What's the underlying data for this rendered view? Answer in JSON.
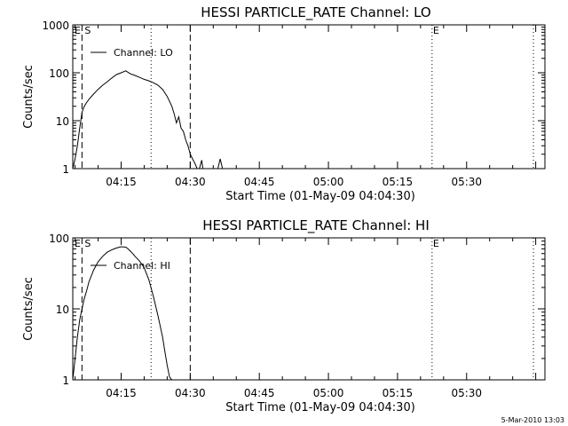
{
  "chart_data": [
    {
      "type": "line",
      "title": "HESSI PARTICLE_RATE Channel: LO",
      "xlabel": "Start Time (01-May-09 04:04:30)",
      "ylabel": "Counts/sec",
      "y_scale": "log",
      "ylim": [
        1,
        1000
      ],
      "xlim": [
        "04:04:30",
        "05:47:00"
      ],
      "x_ticks": [
        "04:15",
        "04:30",
        "04:45",
        "05:00",
        "05:15",
        "05:30"
      ],
      "y_ticks": [
        "1",
        "10",
        "100",
        "1000"
      ],
      "legend": {
        "position": "top-left",
        "entries": [
          "Channel: LO"
        ]
      },
      "markers": {
        "start_label": "S",
        "end_label": "E",
        "dashed_at": [
          "04:06:30",
          "04:30:00"
        ],
        "dotted_at": [
          "04:21:30",
          "05:22:30",
          "05:44:30"
        ]
      },
      "series": [
        {
          "name": "Channel: LO",
          "x": [
            "04:04:30",
            "04:05:00",
            "04:05:30",
            "04:06:00",
            "04:06:30",
            "04:07:00",
            "04:07:30",
            "04:08:00",
            "04:09:00",
            "04:10:00",
            "04:11:00",
            "04:12:00",
            "04:13:00",
            "04:14:00",
            "04:15:00",
            "04:16:00",
            "04:17:00",
            "04:18:00",
            "04:19:00",
            "04:20:00",
            "04:21:00",
            "04:22:00",
            "04:23:00",
            "04:24:00",
            "04:25:00",
            "04:26:00",
            "04:26:30",
            "04:27:00",
            "04:27:30",
            "04:28:00",
            "04:28:30",
            "04:29:00",
            "04:29:30",
            "04:30:00",
            "04:30:30",
            "04:31:00",
            "04:31:30",
            "04:32:00",
            "04:32:30",
            "04:32:45",
            "04:33:00",
            "04:33:30",
            "04:34:00",
            "04:35:00",
            "04:36:00",
            "04:36:30",
            "04:37:00",
            "04:37:30"
          ],
          "y": [
            1,
            1.6,
            3,
            7,
            15,
            20,
            24,
            28,
            36,
            45,
            55,
            65,
            78,
            92,
            100,
            110,
            95,
            88,
            80,
            73,
            68,
            62,
            55,
            45,
            32,
            20,
            14,
            9,
            12,
            7,
            6,
            4,
            3,
            2,
            1.6,
            1.3,
            1,
            1,
            1.5,
            1,
            1,
            1,
            1,
            1,
            1,
            1.6,
            1,
            1
          ]
        }
      ]
    },
    {
      "type": "line",
      "title": "HESSI PARTICLE_RATE Channel: HI",
      "xlabel": "Start Time (01-May-09 04:04:30)",
      "ylabel": "Counts/sec",
      "y_scale": "log",
      "ylim": [
        1,
        100
      ],
      "xlim": [
        "04:04:30",
        "05:47:00"
      ],
      "x_ticks": [
        "04:15",
        "04:30",
        "04:45",
        "05:00",
        "05:15",
        "05:30"
      ],
      "y_ticks": [
        "1",
        "10",
        "100"
      ],
      "legend": {
        "position": "top-left",
        "entries": [
          "Channel: HI"
        ]
      },
      "markers": {
        "start_label": "S",
        "end_label": "E",
        "dashed_at": [
          "04:06:30",
          "04:30:00"
        ],
        "dotted_at": [
          "04:21:30",
          "05:22:30",
          "05:44:30"
        ]
      },
      "series": [
        {
          "name": "Channel: HI",
          "x": [
            "04:04:30",
            "04:05:00",
            "04:05:30",
            "04:06:00",
            "04:06:30",
            "04:07:00",
            "04:07:30",
            "04:08:00",
            "04:09:00",
            "04:10:00",
            "04:11:00",
            "04:12:00",
            "04:13:00",
            "04:14:00",
            "04:15:00",
            "04:16:00",
            "04:16:30",
            "04:17:00",
            "04:17:30",
            "04:18:00",
            "04:19:00",
            "04:20:00",
            "04:21:00",
            "04:22:00",
            "04:23:00",
            "04:24:00",
            "04:24:30",
            "04:25:00",
            "04:25:30",
            "04:26:00"
          ],
          "y": [
            1,
            2,
            4,
            7,
            10,
            14,
            18,
            24,
            35,
            46,
            55,
            63,
            68,
            72,
            75,
            74,
            70,
            65,
            60,
            55,
            47,
            38,
            26,
            15,
            8,
            4,
            2.5,
            1.6,
            1.1,
            1
          ]
        }
      ]
    }
  ],
  "labels": {
    "marker_s": "S",
    "marker_e": "E",
    "marker_left": "E"
  },
  "footer": {
    "timestamp": "5-Mar-2010 13:03"
  },
  "colors": {
    "line": "#000000",
    "background": "#ffffff"
  }
}
